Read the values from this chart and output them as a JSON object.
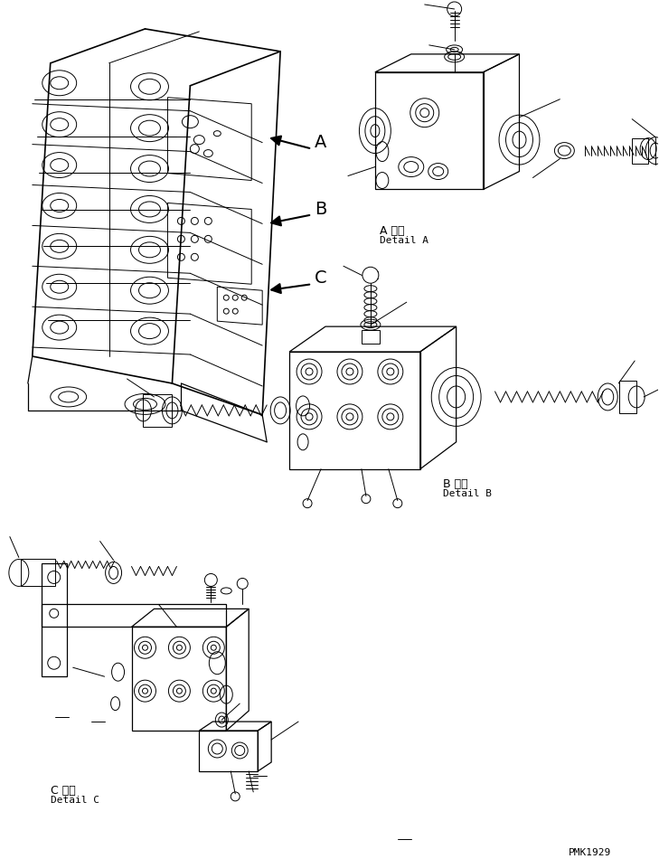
{
  "background_color": "#ffffff",
  "line_color": "#000000",
  "fig_width": 7.29,
  "fig_height": 9.5,
  "dpi": 100,
  "watermark": "PMK1929",
  "label_A_jp": "A 詳細",
  "label_A_en": "Detail A",
  "label_B_jp": "B 詳細",
  "label_B_en": "Detail B",
  "label_C_jp": "C 詳細",
  "label_C_en": "Detail C"
}
